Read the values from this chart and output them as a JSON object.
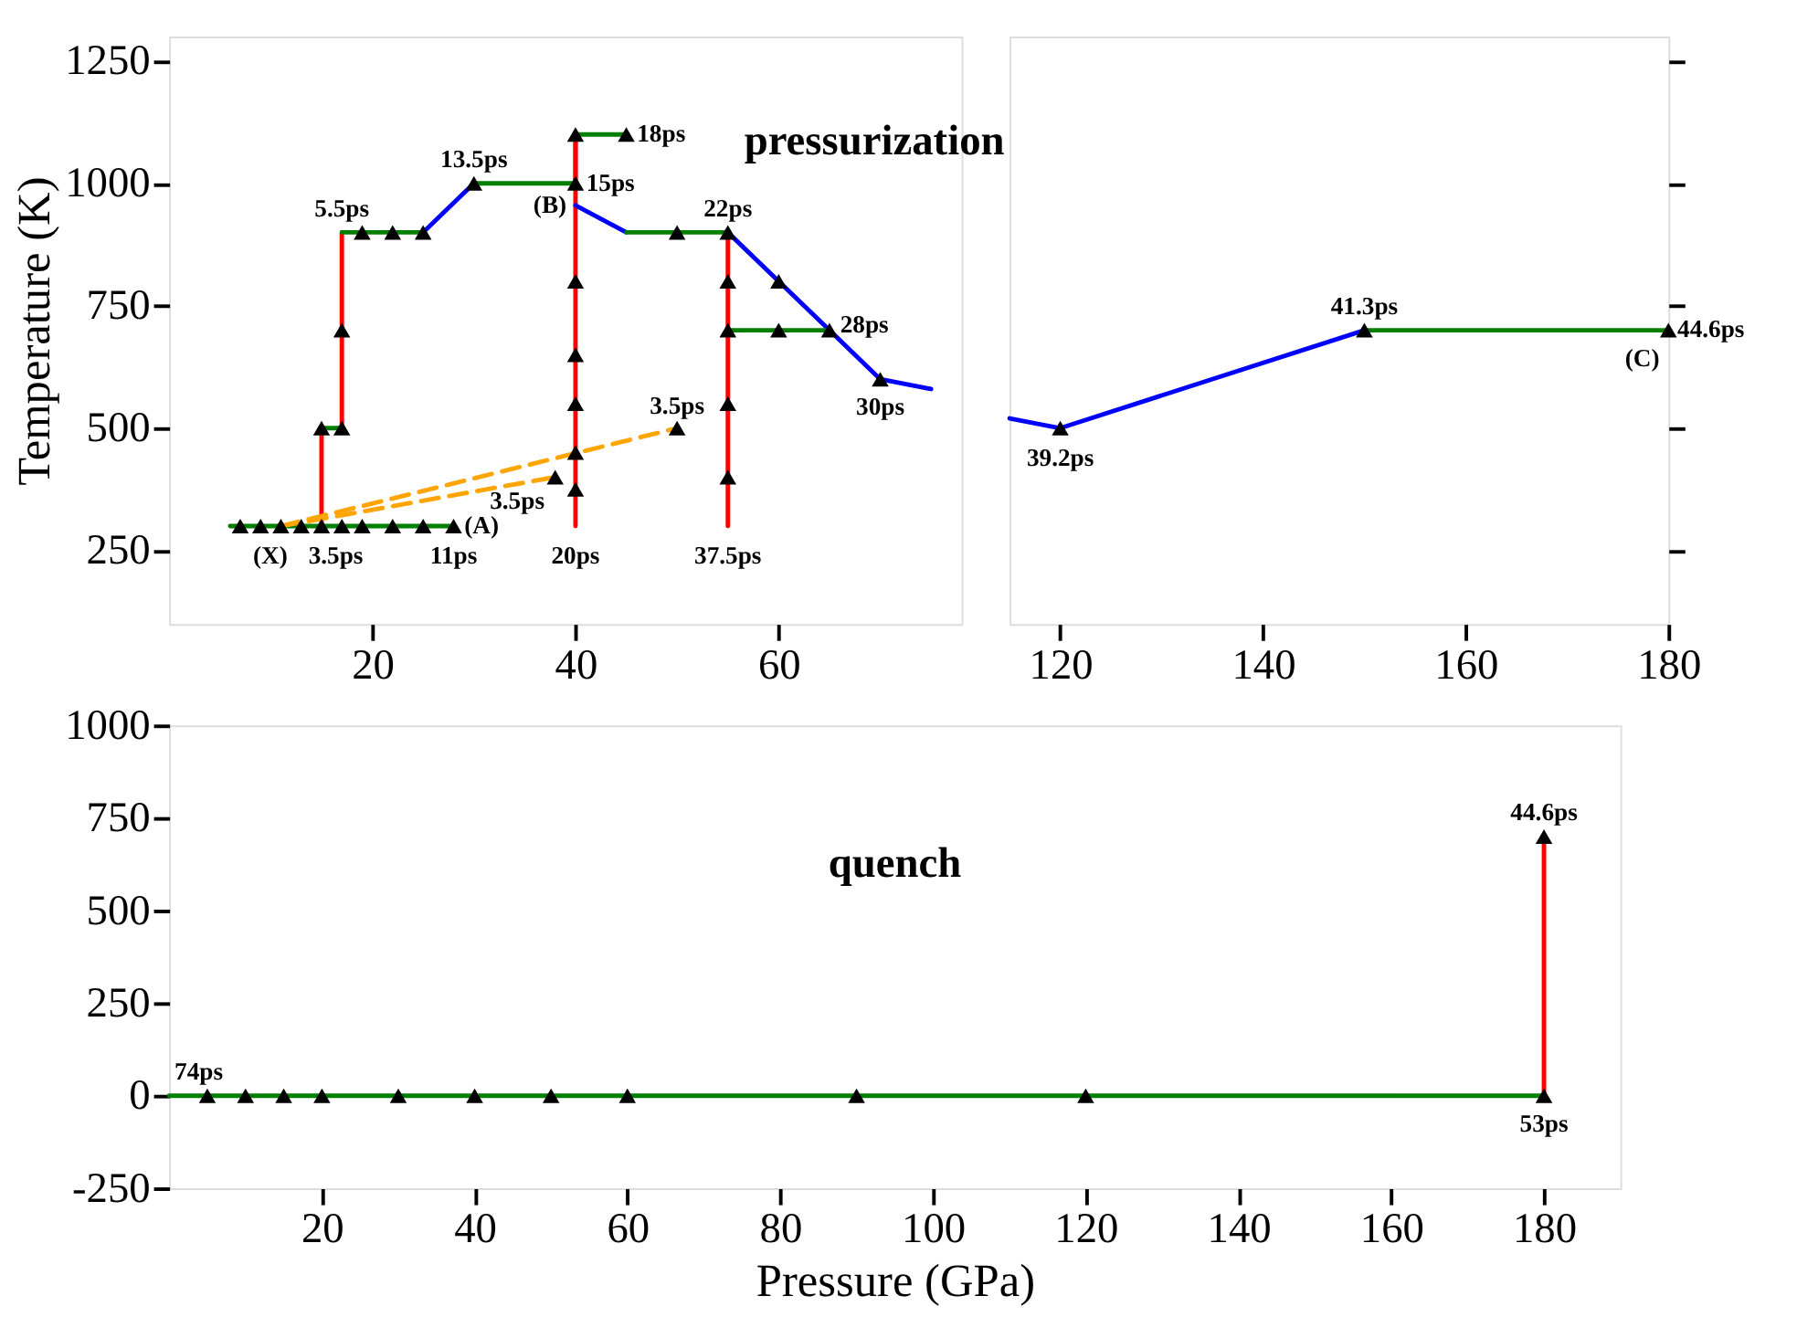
{
  "chart_data": [
    {
      "type": "line",
      "ylabel": "Temperature (K)",
      "xlim": [
        0,
        78
      ],
      "xticks": [
        20,
        40,
        60
      ],
      "ylim": [
        100,
        1300
      ],
      "yticks": [
        250,
        500,
        750,
        1000,
        1250
      ],
      "series": [
        {
          "color": "#008000",
          "x": [
            6,
            28
          ],
          "values": [
            300,
            300
          ]
        },
        {
          "color": "#ff0000",
          "x": [
            15,
            15
          ],
          "values": [
            300,
            500
          ]
        },
        {
          "color": "#008000",
          "x": [
            15,
            17
          ],
          "values": [
            500,
            500
          ]
        },
        {
          "color": "#ff0000",
          "x": [
            17,
            17
          ],
          "values": [
            500,
            900
          ]
        },
        {
          "color": "#008000",
          "x": [
            17,
            25
          ],
          "values": [
            900,
            900
          ]
        },
        {
          "color": "#0000ff",
          "x": [
            25,
            30
          ],
          "values": [
            900,
            1000
          ]
        },
        {
          "color": "#008000",
          "x": [
            30,
            40
          ],
          "values": [
            1000,
            1000
          ]
        },
        {
          "color": "#ff0000",
          "x": [
            40,
            40
          ],
          "values": [
            1000,
            1100
          ]
        },
        {
          "color": "#008000",
          "x": [
            40,
            45
          ],
          "values": [
            1100,
            1100
          ]
        },
        {
          "color": "#ff0000",
          "x": [
            40,
            40
          ],
          "values": [
            1100,
            300
          ]
        },
        {
          "color": "#0000ff",
          "x": [
            40,
            45
          ],
          "values": [
            955,
            900
          ]
        },
        {
          "color": "#008000",
          "x": [
            45,
            55
          ],
          "values": [
            900,
            900
          ]
        },
        {
          "color": "#ff0000",
          "x": [
            55,
            55
          ],
          "values": [
            900,
            300
          ]
        },
        {
          "color": "#0000ff",
          "x": [
            55,
            60,
            65,
            70,
            75
          ],
          "values": [
            900,
            800,
            700,
            600,
            580
          ]
        },
        {
          "color": "#008000",
          "x": [
            65,
            55
          ],
          "values": [
            700,
            700
          ]
        },
        {
          "color": "#ffa500",
          "line_style": "dashed",
          "x": [
            11,
            38
          ],
          "values": [
            300,
            400
          ]
        },
        {
          "color": "#ffa500",
          "line_style": "dashed",
          "x": [
            11,
            50
          ],
          "values": [
            300,
            500
          ]
        },
        {
          "type": "scatter",
          "color": "#000000",
          "marker": "triangle",
          "x": [
            7,
            9,
            11,
            13,
            15,
            17,
            19,
            22,
            25,
            28,
            15,
            17,
            17,
            19,
            22,
            25,
            30,
            40,
            40,
            45,
            40,
            40,
            40,
            40,
            40,
            38,
            50,
            50,
            55,
            55,
            55,
            55,
            55,
            60,
            60,
            65,
            70
          ],
          "values": [
            300,
            300,
            300,
            300,
            300,
            300,
            300,
            300,
            300,
            300,
            500,
            500,
            700,
            900,
            900,
            900,
            1000,
            1000,
            1100,
            1100,
            800,
            650,
            550,
            450,
            375,
            400,
            500,
            900,
            900,
            800,
            700,
            550,
            400,
            800,
            700,
            700,
            600
          ]
        }
      ],
      "annotations": [
        "pressurization",
        {
          "text": "(X)",
          "x": 11,
          "y": 300
        },
        {
          "text": "3.5ps",
          "x": 15,
          "y": 300
        },
        {
          "text": "11ps",
          "x": 28,
          "y": 300
        },
        {
          "text": "(A)",
          "x": 28,
          "y": 300
        },
        {
          "text": "20ps",
          "x": 40,
          "y": 300
        },
        {
          "text": "37.5ps",
          "x": 55,
          "y": 300
        },
        {
          "text": "3.5ps",
          "x": 38,
          "y": 400
        },
        {
          "text": "3.5ps",
          "x": 50,
          "y": 500
        },
        {
          "text": "5.5ps",
          "x": 17,
          "y": 900
        },
        {
          "text": "13.5ps",
          "x": 30,
          "y": 1000
        },
        {
          "text": "15ps",
          "x": 40,
          "y": 1000
        },
        {
          "text": "18ps",
          "x": 45,
          "y": 1100
        },
        {
          "text": "(B)",
          "x": 40,
          "y": 955
        },
        {
          "text": "22ps",
          "x": 55,
          "y": 900
        },
        {
          "text": "28ps",
          "x": 65,
          "y": 700
        },
        {
          "text": "30ps",
          "x": 70,
          "y": 600
        }
      ]
    },
    {
      "type": "line",
      "xlim": [
        115,
        180
      ],
      "xticks": [
        120,
        140,
        160,
        180
      ],
      "ylim": [
        100,
        1300
      ],
      "yticks": [
        250,
        500,
        750,
        1000,
        1250
      ],
      "tick_labels": "x",
      "series": [
        {
          "color": "#0000ff",
          "x": [
            115,
            120,
            150
          ],
          "values": [
            520,
            500,
            700
          ]
        },
        {
          "color": "#008000",
          "x": [
            150,
            180
          ],
          "values": [
            700,
            700
          ]
        },
        {
          "type": "scatter",
          "color": "#000000",
          "marker": "triangle",
          "x": [
            120,
            150,
            180
          ],
          "values": [
            500,
            700,
            700
          ]
        }
      ],
      "annotations": [
        {
          "text": "39.2ps",
          "x": 120,
          "y": 500
        },
        {
          "text": "41.3ps",
          "x": 150,
          "y": 700
        },
        {
          "text": "(C)",
          "x": 180,
          "y": 700
        },
        {
          "text": "44.6ps",
          "x": 180,
          "y": 700
        }
      ]
    },
    {
      "type": "line",
      "xlabel": "Pressure (GPa)",
      "xlim": [
        0,
        190
      ],
      "xticks": [
        20,
        40,
        60,
        80,
        100,
        120,
        140,
        160,
        180
      ],
      "ylim": [
        -250,
        1000
      ],
      "yticks": [
        -250,
        0,
        250,
        500,
        750,
        1000
      ],
      "series": [
        {
          "color": "#ff0000",
          "x": [
            180,
            180
          ],
          "values": [
            700,
            0
          ]
        },
        {
          "color": "#008000",
          "x": [
            180,
            0
          ],
          "values": [
            0,
            0
          ]
        },
        {
          "type": "scatter",
          "color": "#000000",
          "marker": "triangle",
          "x": [
            180,
            180,
            120,
            90,
            60,
            50,
            40,
            30,
            20,
            15,
            10,
            5
          ],
          "values": [
            700,
            0,
            0,
            0,
            0,
            0,
            0,
            0,
            0,
            0,
            0,
            0
          ]
        }
      ],
      "annotations": [
        "quench",
        {
          "text": "74ps",
          "x": 0,
          "y": 0
        },
        {
          "text": "44.6ps",
          "x": 180,
          "y": 700
        },
        {
          "text": "53ps",
          "x": 180,
          "y": 0
        }
      ]
    }
  ]
}
